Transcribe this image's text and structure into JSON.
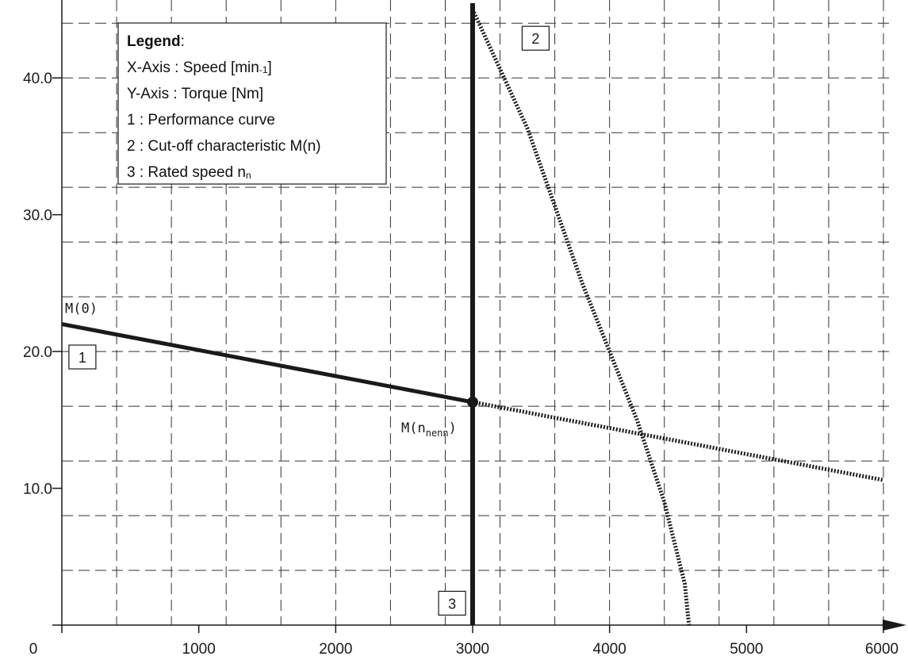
{
  "chart_data": {
    "type": "line",
    "x_ticks": [
      "0",
      "1000",
      "2000",
      "3000",
      "4000",
      "5000",
      "6000"
    ],
    "y_ticks": [
      "10.0",
      "20.0",
      "30.0",
      "40.0"
    ],
    "xlim": [
      0,
      6000
    ],
    "ylim": [
      0,
      45
    ],
    "grid": true,
    "legend": {
      "title": "Legend",
      "title_suffix": ":",
      "x_axis_text": "X-Axis : Speed [min",
      "x_axis_sup": "-1",
      "x_axis_end": "]",
      "y_axis_text": "Y-Axis : Torque [Nm]",
      "item_1": "1 : Performance curve",
      "item_2": "2 : Cut-off characteristic M(n)",
      "item_3_text": "3 : Rated speed n",
      "item_3_sub": "n",
      "placement": "top-left"
    },
    "series": [
      {
        "id": "1",
        "style": "solid",
        "x": [
          0,
          3000
        ],
        "y": [
          22.0,
          16.3
        ]
      },
      {
        "id": "1-extension",
        "style": "dotted",
        "x": [
          3000,
          6000
        ],
        "y": [
          16.3,
          10.6
        ]
      },
      {
        "id": "2",
        "style": "dotted",
        "x": [
          3000,
          3400,
          3800,
          4000,
          4200,
          4400,
          4550,
          4580
        ],
        "y": [
          45.0,
          36.3,
          25.0,
          20.0,
          15.0,
          9.0,
          3.0,
          0.0
        ]
      },
      {
        "id": "3",
        "style": "solid",
        "x": [
          3000,
          3000
        ],
        "y": [
          0,
          45
        ]
      }
    ],
    "points": [
      {
        "name": "rated-point",
        "x": 3000,
        "y": 16.3
      }
    ],
    "annotations": {
      "m0_label": "M(0)",
      "mnenn_label": "M(n",
      "mnenn_sub": "nenn",
      "mnenn_close": ")"
    },
    "badges": [
      {
        "text": "1",
        "x": 150,
        "y": 19.6
      },
      {
        "text": "2",
        "x": 3460,
        "y": 42.9
      },
      {
        "text": "3",
        "x": 2850,
        "y": 1.6
      }
    ]
  }
}
